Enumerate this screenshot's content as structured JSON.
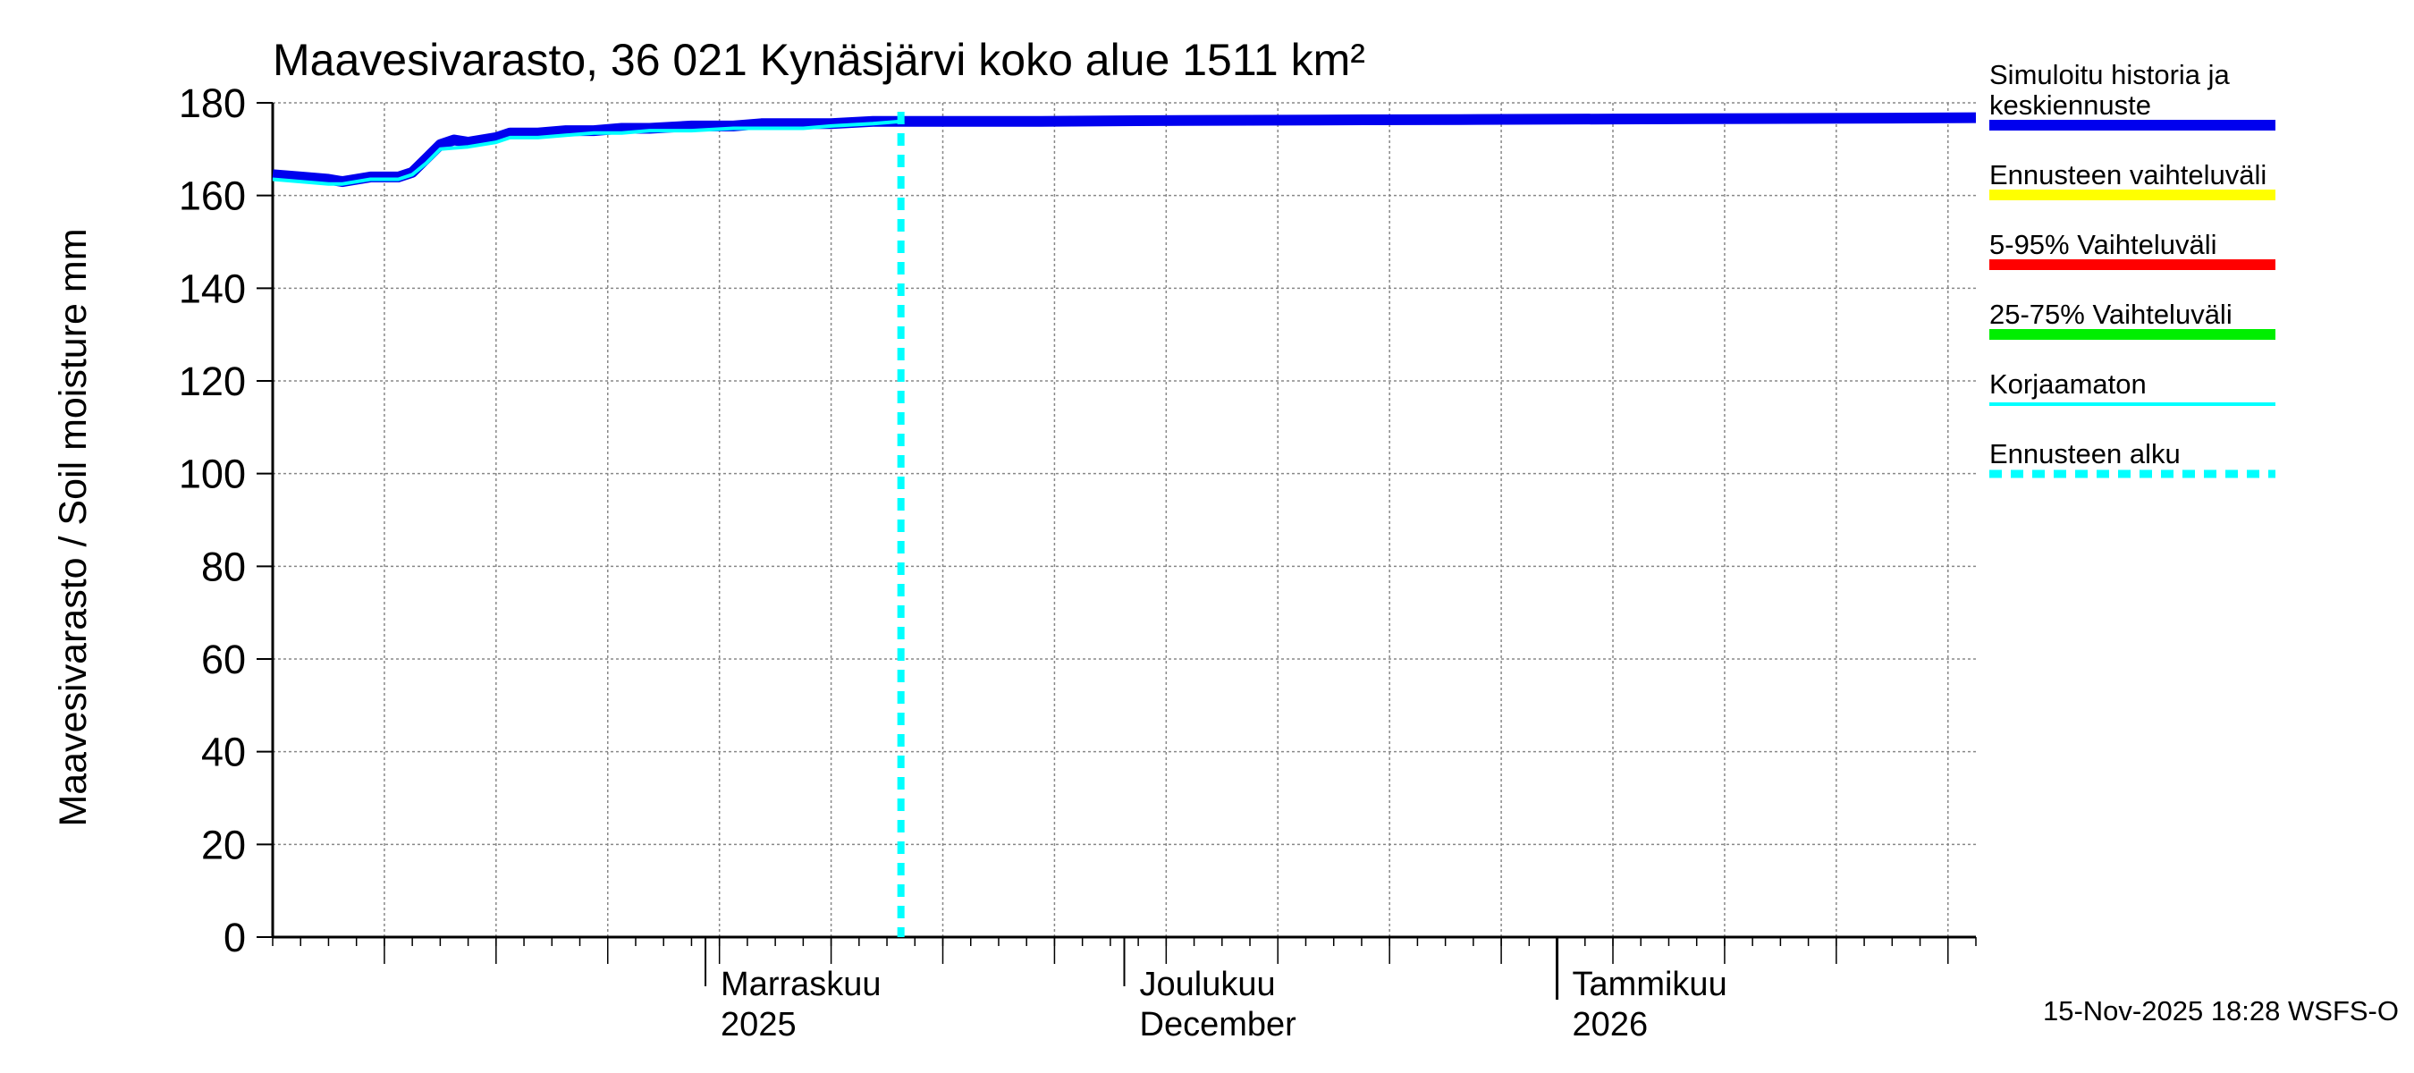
{
  "chart_data": {
    "type": "line",
    "title": "Maavesivarasto, 36 021 Kynäsjärvi koko alue 1511 km²",
    "ylabel": "Maavesivarasto / Soil moisture   mm",
    "ylim": [
      0,
      180
    ],
    "yticks": [
      0,
      20,
      40,
      60,
      80,
      100,
      120,
      140,
      160,
      180
    ],
    "xlim": [
      "2025-10-01",
      "2026-01-31"
    ],
    "grid": true,
    "month_labels": [
      {
        "date": "2025-11-01",
        "line1": "Marraskuu",
        "line2": "2025"
      },
      {
        "date": "2025-12-01",
        "line1": "Joulukuu",
        "line2": "December"
      },
      {
        "date": "2026-01-01",
        "line1": "Tammikuu",
        "line2": "2026"
      }
    ],
    "forecast_start": "2025-11-15",
    "series": [
      {
        "name": "Simuloitu historia ja keskiennuste",
        "color": "#0000ee",
        "points": [
          [
            "2025-10-01",
            164.5
          ],
          [
            "2025-10-03",
            164.0
          ],
          [
            "2025-10-05",
            163.5
          ],
          [
            "2025-10-06",
            163.0
          ],
          [
            "2025-10-08",
            164.0
          ],
          [
            "2025-10-10",
            164.0
          ],
          [
            "2025-10-11",
            165.0
          ],
          [
            "2025-10-12",
            168.0
          ],
          [
            "2025-10-13",
            171.0
          ],
          [
            "2025-10-14",
            172.0
          ],
          [
            "2025-10-15",
            171.5
          ],
          [
            "2025-10-17",
            172.5
          ],
          [
            "2025-10-18",
            173.5
          ],
          [
            "2025-10-20",
            173.5
          ],
          [
            "2025-10-22",
            174.0
          ],
          [
            "2025-10-24",
            174.0
          ],
          [
            "2025-10-26",
            174.5
          ],
          [
            "2025-10-28",
            174.5
          ],
          [
            "2025-10-31",
            175.0
          ],
          [
            "2025-11-03",
            175.0
          ],
          [
            "2025-11-05",
            175.5
          ],
          [
            "2025-11-08",
            175.5
          ],
          [
            "2025-11-10",
            175.5
          ],
          [
            "2025-11-13",
            176.0
          ],
          [
            "2025-11-15",
            176.0
          ],
          [
            "2025-11-25",
            176.0
          ],
          [
            "2025-12-05",
            176.2
          ],
          [
            "2025-12-15",
            176.3
          ],
          [
            "2025-12-25",
            176.4
          ],
          [
            "2026-01-05",
            176.5
          ],
          [
            "2026-01-15",
            176.6
          ],
          [
            "2026-01-25",
            176.7
          ],
          [
            "2026-01-31",
            176.8
          ]
        ]
      },
      {
        "name": "Korjaamaton",
        "color": "#00ffff",
        "points": [
          [
            "2025-10-01",
            163.5
          ],
          [
            "2025-10-03",
            163.0
          ],
          [
            "2025-10-05",
            162.5
          ],
          [
            "2025-10-06",
            162.5
          ],
          [
            "2025-10-08",
            163.5
          ],
          [
            "2025-10-10",
            163.5
          ],
          [
            "2025-10-11",
            164.5
          ],
          [
            "2025-10-12",
            167.0
          ],
          [
            "2025-10-13",
            170.0
          ],
          [
            "2025-10-15",
            170.5
          ],
          [
            "2025-10-17",
            171.5
          ],
          [
            "2025-10-18",
            172.5
          ],
          [
            "2025-10-20",
            172.5
          ],
          [
            "2025-10-22",
            173.0
          ],
          [
            "2025-10-24",
            173.5
          ],
          [
            "2025-10-26",
            173.5
          ],
          [
            "2025-10-28",
            174.0
          ],
          [
            "2025-10-31",
            174.0
          ],
          [
            "2025-11-03",
            174.5
          ],
          [
            "2025-11-05",
            174.5
          ],
          [
            "2025-11-08",
            174.5
          ],
          [
            "2025-11-10",
            175.0
          ],
          [
            "2025-11-13",
            175.5
          ],
          [
            "2025-11-15",
            176.0
          ]
        ]
      }
    ],
    "legend": [
      {
        "label_lines": [
          "Simuloitu historia ja",
          "keskiennuste"
        ],
        "color": "#0000ee",
        "style": "solid"
      },
      {
        "label_lines": [
          "Ennusteen vaihteluväli"
        ],
        "color": "#ffff00",
        "style": "solid"
      },
      {
        "label_lines": [
          "5-95% Vaihteluväli"
        ],
        "color": "#ff0000",
        "style": "solid"
      },
      {
        "label_lines": [
          "25-75% Vaihteluväli"
        ],
        "color": "#00ee00",
        "style": "solid"
      },
      {
        "label_lines": [
          "Korjaamaton"
        ],
        "color": "#00ffff",
        "style": "thin"
      },
      {
        "label_lines": [
          "Ennusteen alku"
        ],
        "color": "#00ffff",
        "style": "dashed"
      }
    ],
    "legend_position": "right",
    "footer": "15-Nov-2025 18:28 WSFS-O"
  }
}
